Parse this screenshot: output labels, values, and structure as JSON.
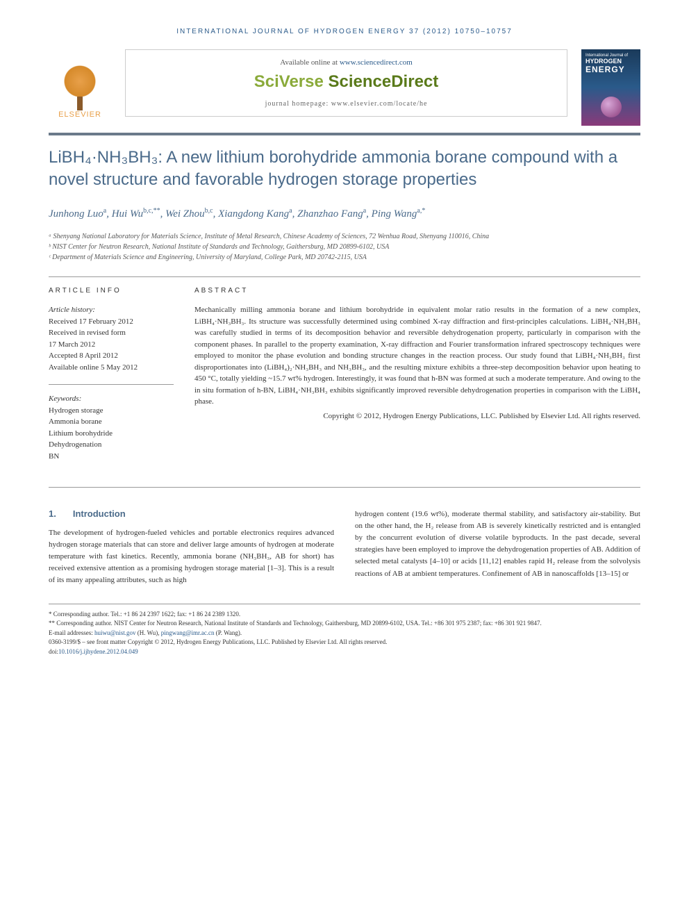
{
  "journal_header": "INTERNATIONAL JOURNAL OF HYDROGEN ENERGY 37 (2012) 10750–10757",
  "publisher": {
    "name": "ELSEVIER",
    "available_prefix": "Available online at ",
    "available_link": "www.sciencedirect.com",
    "platform_logo": "SciVerse ScienceDirect",
    "homepage": "journal homepage: www.elsevier.com/locate/he"
  },
  "cover": {
    "line1": "International Journal of",
    "line2": "HYDROGEN",
    "line3": "ENERGY"
  },
  "title": "LiBH₄·NH₃BH₃: A new lithium borohydride ammonia borane compound with a novel structure and favorable hydrogen storage properties",
  "authors_html": "Junhong Luo<sup>a</sup>, Hui Wu<sup>b,c,**</sup>, Wei Zhou<sup>b,c</sup>, Xiangdong Kang<sup>a</sup>, Zhanzhao Fang<sup>a</sup>, Ping Wang<sup>a,*</sup>",
  "affiliations": [
    "ᵃ Shenyang National Laboratory for Materials Science, Institute of Metal Research, Chinese Academy of Sciences, 72 Wenhua Road, Shenyang 110016, China",
    "ᵇ NIST Center for Neutron Research, National Institute of Standards and Technology, Gaithersburg, MD 20899-6102, USA",
    "ᶜ Department of Materials Science and Engineering, University of Maryland, College Park, MD 20742-2115, USA"
  ],
  "info": {
    "heading": "ARTICLE INFO",
    "history_title": "Article history:",
    "history": [
      "Received 17 February 2012",
      "Received in revised form",
      "17 March 2012",
      "Accepted 8 April 2012",
      "Available online 5 May 2012"
    ],
    "keywords_title": "Keywords:",
    "keywords": [
      "Hydrogen storage",
      "Ammonia borane",
      "Lithium borohydride",
      "Dehydrogenation",
      "BN"
    ]
  },
  "abstract": {
    "heading": "ABSTRACT",
    "text": "Mechanically milling ammonia borane and lithium borohydride in equivalent molar ratio results in the formation of a new complex, LiBH₄·NH₃BH₃. Its structure was successfully determined using combined X-ray diffraction and first-principles calculations. LiBH₄·NH₃BH₃ was carefully studied in terms of its decomposition behavior and reversible dehydrogenation property, particularly in comparison with the component phases. In parallel to the property examination, X-ray diffraction and Fourier transformation infrared spectroscopy techniques were employed to monitor the phase evolution and bonding structure changes in the reaction process. Our study found that LiBH₄·NH₃BH₃ first disproportionates into (LiBH₄)₂·NH₃BH₃ and NH₃BH₃, and the resulting mixture exhibits a three-step decomposition behavior upon heating to 450 °C, totally yielding ~15.7 wt% hydrogen. Interestingly, it was found that h-BN was formed at such a moderate temperature. And owing to the in situ formation of h-BN, LiBH₄·NH₃BH₃ exhibits significantly improved reversible dehydrogenation properties in comparison with the LiBH₄ phase.",
    "copyright": "Copyright © 2012, Hydrogen Energy Publications, LLC. Published by Elsevier Ltd. All rights reserved."
  },
  "section1": {
    "num": "1.",
    "heading": "Introduction",
    "col1": "The development of hydrogen-fueled vehicles and portable electronics requires advanced hydrogen storage materials that can store and deliver large amounts of hydrogen at moderate temperature with fast kinetics. Recently, ammonia borane (NH₃BH₃, AB for short) has received extensive attention as a promising hydrogen storage material [1–3]. This is a result of its many appealing attributes, such as high",
    "col2": "hydrogen content (19.6 wt%), moderate thermal stability, and satisfactory air-stability. But on the other hand, the H₂ release from AB is severely kinetically restricted and is entangled by the concurrent evolution of diverse volatile byproducts. In the past decade, several strategies have been employed to improve the dehydrogenation properties of AB. Addition of selected metal catalysts [4–10] or acids [11,12] enables rapid H₂ release from the solvolysis reactions of AB at ambient temperatures. Confinement of AB in nanoscaffolds [13–15] or"
  },
  "footnotes": {
    "corr1": "* Corresponding author. Tel.: +1 86 24 2397 1622; fax: +1 86 24 2389 1320.",
    "corr2": "** Corresponding author. NIST Center for Neutron Research, National Institute of Standards and Technology, Gaithersburg, MD 20899-6102, USA. Tel.: +86 301 975 2387; fax: +86 301 921 9847.",
    "emails_label": "E-mail addresses: ",
    "email1": "huiwu@nist.gov",
    "email1_name": " (H. Wu), ",
    "email2": "pingwang@imr.ac.cn",
    "email2_name": " (P. Wang).",
    "issn": "0360-3199/$ – see front matter Copyright © 2012, Hydrogen Energy Publications, LLC. Published by Elsevier Ltd. All rights reserved.",
    "doi_label": "doi:",
    "doi": "10.1016/j.ijhydene.2012.04.049"
  },
  "colors": {
    "header_blue": "#2a5a8a",
    "title_blue": "#4a6a8a",
    "bar_gray": "#6b7a8a",
    "elsevier_orange": "#e8a04a",
    "sciverse_green": "#8aaa3a",
    "link_blue": "#2a5a8a",
    "text": "#333333",
    "divider": "#999999"
  }
}
